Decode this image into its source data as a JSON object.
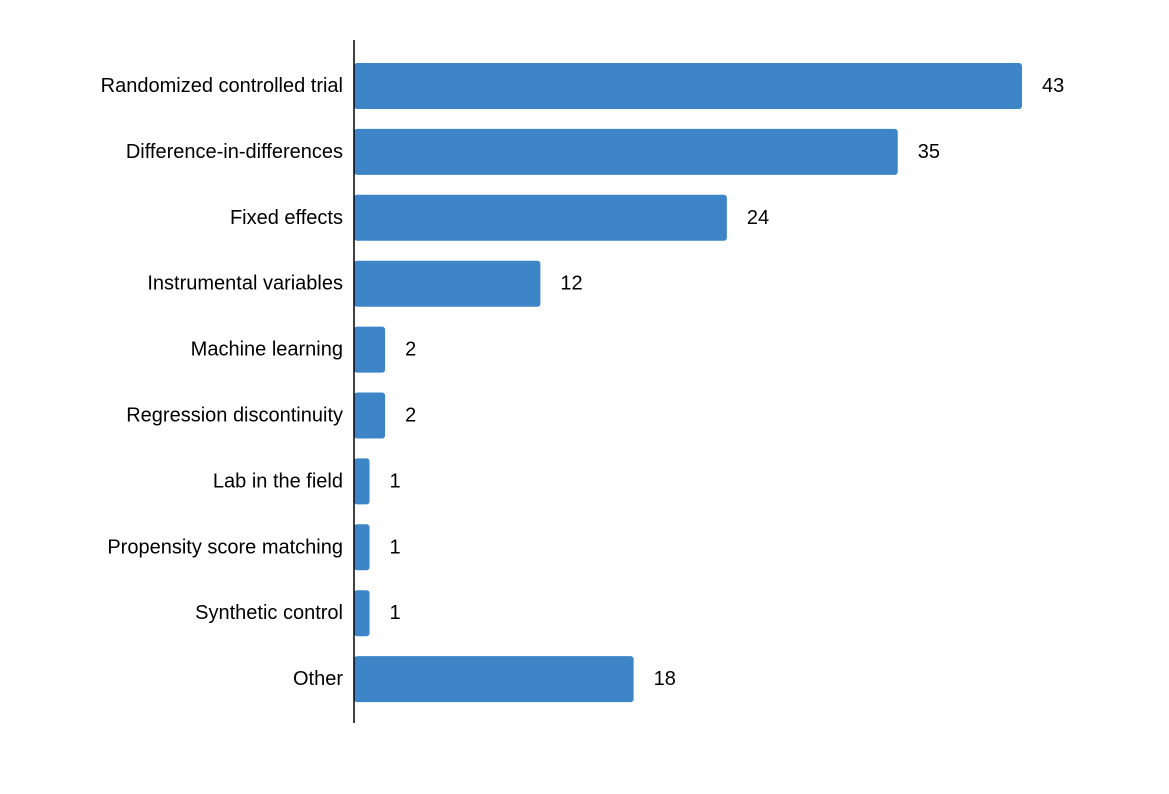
{
  "chart_data": {
    "type": "bar",
    "orientation": "horizontal",
    "categories": [
      "Randomized controlled trial",
      "Difference-in-differences",
      "Fixed effects",
      "Instrumental variables",
      "Machine learning",
      "Regression discontinuity",
      "Lab in the field",
      "Propensity score matching",
      "Synthetic control",
      "Other"
    ],
    "values": [
      43,
      35,
      24,
      12,
      2,
      2,
      1,
      1,
      1,
      18
    ],
    "xlim": [
      0,
      43
    ],
    "grid": false,
    "legend": "none",
    "bar_color": "#3d85c6",
    "data_labels": true
  }
}
